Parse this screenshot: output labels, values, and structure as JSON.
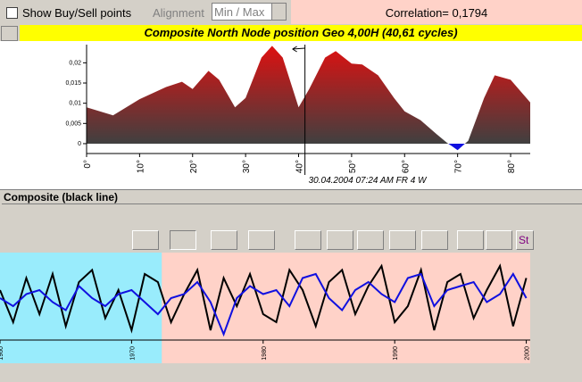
{
  "controls": {
    "checkbox_label": "Show Buy/Sell points",
    "alignment_label": "Alignment",
    "alignment_value": "Min / Max",
    "correlation": "Correlation= 0,1794",
    "toolbar_text": "St"
  },
  "chart_data": [
    {
      "type": "area",
      "title": "Composite North Node position Geo  4,00H  (40,61 cycles)",
      "x": [
        0,
        5,
        10,
        15,
        18,
        20,
        23,
        25,
        28,
        30,
        33,
        35,
        37,
        40,
        42,
        45,
        47,
        50,
        52,
        55,
        58,
        60,
        63,
        66,
        68,
        70,
        72,
        75,
        77,
        80,
        83.7
      ],
      "values": [
        0.009,
        0.007,
        0.011,
        0.014,
        0.0153,
        0.0135,
        0.018,
        0.0158,
        0.009,
        0.0113,
        0.0213,
        0.0242,
        0.0213,
        0.009,
        0.0135,
        0.0213,
        0.0229,
        0.0198,
        0.0196,
        0.0169,
        0.0113,
        0.008,
        0.0058,
        0.0024,
        0.0002,
        -0.0016,
        0.0007,
        0.0113,
        0.0169,
        0.0158,
        0.0102
      ],
      "color": "#e01010",
      "negative_color": "#1010e0",
      "xlim": [
        0,
        83.7
      ],
      "xticks": [
        {
          "value": 0,
          "label": "0°"
        },
        {
          "value": 10,
          "label": "10°"
        },
        {
          "value": 20,
          "label": "20°"
        },
        {
          "value": 30,
          "label": "30°"
        },
        {
          "value": 40,
          "label": "40°"
        },
        {
          "value": 50,
          "label": "50°"
        },
        {
          "value": 60,
          "label": "60°"
        },
        {
          "value": 70,
          "label": "70°"
        },
        {
          "value": 80,
          "label": "80°"
        }
      ],
      "ylim": [
        -0.002,
        0.0245
      ],
      "yticks": [
        0,
        {
          "value": 0.005,
          "label": "0,005"
        },
        {
          "value": 0.01,
          "label": "0,01"
        },
        {
          "value": 0.015,
          "label": "0,015"
        },
        {
          "value": 0.02,
          "label": "0,02"
        }
      ],
      "cursor": 41.2,
      "annotation": "30.04.2004  07:24 AM FR  4 W"
    },
    {
      "type": "line",
      "title": "Composite (black line)",
      "x": [
        1960,
        1961,
        1962,
        1963,
        1964,
        1965,
        1966,
        1967,
        1968,
        1969,
        1970,
        1971,
        1972,
        1973,
        1974,
        1975,
        1976,
        1977,
        1978,
        1979,
        1980,
        1981,
        1982,
        1983,
        1984,
        1985,
        1986,
        1987,
        1988,
        1989,
        1990,
        1991,
        1992,
        1993,
        1994,
        1995,
        1996,
        1997,
        1998,
        1999,
        2000
      ],
      "series": [
        {
          "color": "#000000",
          "values": [
            60,
            20,
            75,
            30,
            80,
            15,
            70,
            85,
            25,
            60,
            10,
            80,
            70,
            20,
            55,
            85,
            10,
            75,
            40,
            80,
            30,
            20,
            85,
            60,
            15,
            70,
            85,
            30,
            65,
            90,
            20,
            40,
            85,
            10,
            70,
            80,
            25,
            60,
            90,
            15,
            75
          ]
        },
        {
          "color": "#1010e0",
          "values": [
            50,
            40,
            55,
            60,
            45,
            35,
            65,
            50,
            40,
            55,
            60,
            45,
            30,
            50,
            55,
            70,
            45,
            5,
            50,
            65,
            55,
            60,
            40,
            75,
            80,
            50,
            35,
            60,
            70,
            55,
            45,
            75,
            80,
            40,
            60,
            65,
            70,
            45,
            55,
            80,
            50
          ]
        }
      ],
      "xlim": [
        1960,
        2000.3
      ],
      "xticks": [
        1960,
        1970,
        1980,
        1990,
        2000
      ],
      "ylim": [
        0,
        100
      ],
      "regions": [
        {
          "from": 1960,
          "to": 1972.3,
          "color": "#99ecfc"
        },
        {
          "from": 1972.3,
          "to": 2000.3,
          "color": "#ffd2c8"
        }
      ]
    }
  ]
}
